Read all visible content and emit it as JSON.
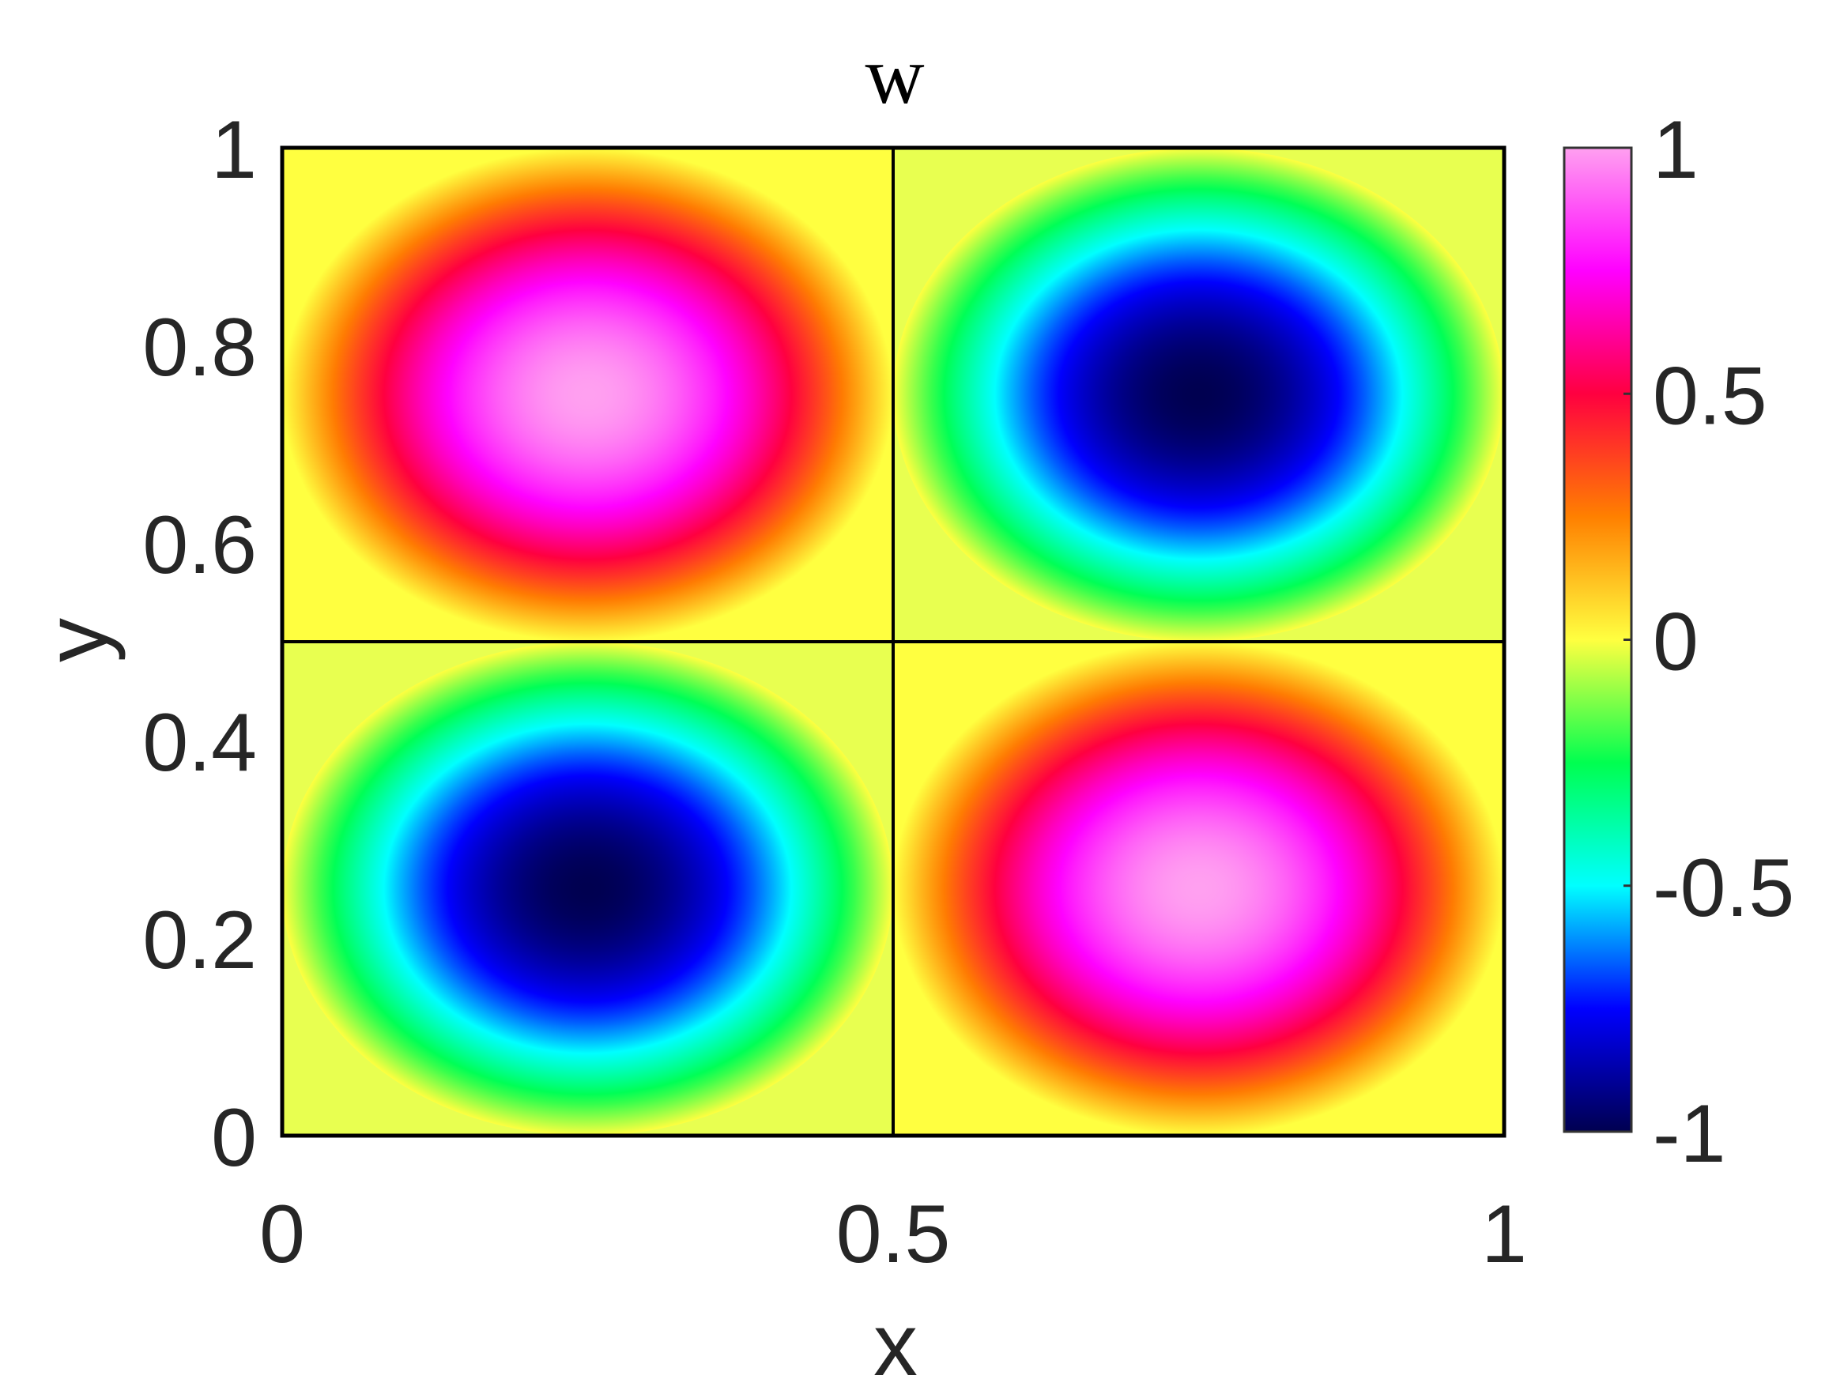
{
  "chart_data": {
    "type": "heatmap",
    "title": "w",
    "xlabel": "x",
    "ylabel": "y",
    "xlim": [
      0,
      1
    ],
    "ylim": [
      0,
      1
    ],
    "x_ticks": [
      0,
      0.5,
      1
    ],
    "x_tick_labels": [
      "0",
      "0.5",
      "1"
    ],
    "y_ticks": [
      0,
      0.2,
      0.4,
      0.6,
      0.8,
      1
    ],
    "y_tick_labels": [
      "0",
      "0.2",
      "0.4",
      "0.6",
      "0.8",
      "1"
    ],
    "colorbar": {
      "limits": [
        -1,
        1
      ],
      "ticks": [
        -1,
        -0.5,
        0,
        0.5,
        1
      ],
      "tick_labels": [
        "-1",
        "-0.5",
        "0",
        "0.5",
        "1"
      ],
      "colormap": [
        "#000050",
        "#0000ff",
        "#00ffff",
        "#00ff50",
        "#ffff40",
        "#ff8000",
        "#ff0040",
        "#ff00ff",
        "#ffa0f0"
      ]
    },
    "cells": [
      {
        "x": [
          0,
          0.5
        ],
        "y": [
          0.5,
          1
        ],
        "peak": 1,
        "peak_at": [
          0.25,
          0.75
        ]
      },
      {
        "x": [
          0.5,
          1
        ],
        "y": [
          0.5,
          1
        ],
        "peak": -1,
        "peak_at": [
          0.75,
          0.75
        ]
      },
      {
        "x": [
          0,
          0.5
        ],
        "y": [
          0,
          0.5
        ],
        "peak": -1,
        "peak_at": [
          0.25,
          0.25
        ]
      },
      {
        "x": [
          0.5,
          1
        ],
        "y": [
          0,
          0.5
        ],
        "peak": 1,
        "peak_at": [
          0.75,
          0.25
        ]
      }
    ],
    "grid": false,
    "colors": {
      "axis": "#000000",
      "text": "#262626",
      "background": "#ffffff"
    }
  }
}
